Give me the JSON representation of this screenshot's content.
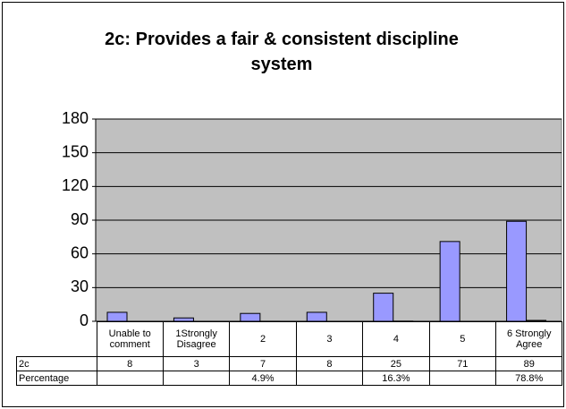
{
  "chart_data": {
    "type": "bar",
    "title": "2c: Provides a fair & consistent discipline system",
    "categories": [
      "Unable to comment",
      "1Strongly Disagree",
      "2",
      "3",
      "4",
      "5",
      "6 Strongly Agree"
    ],
    "series": [
      {
        "name": "2c",
        "color": "#9999ff",
        "values": [
          8,
          3,
          7,
          8,
          25,
          71,
          89
        ]
      },
      {
        "name": "Percentage",
        "color": "#9999ff",
        "values": [
          null,
          null,
          0.049,
          null,
          0.163,
          null,
          0.788
        ],
        "value_labels": [
          null,
          null,
          "4.9%",
          null,
          "16.3%",
          null,
          "78.8%"
        ]
      }
    ],
    "ylim": [
      0,
      180
    ],
    "yticks": [
      0,
      30,
      60,
      90,
      120,
      150,
      180
    ],
    "grid": true
  }
}
